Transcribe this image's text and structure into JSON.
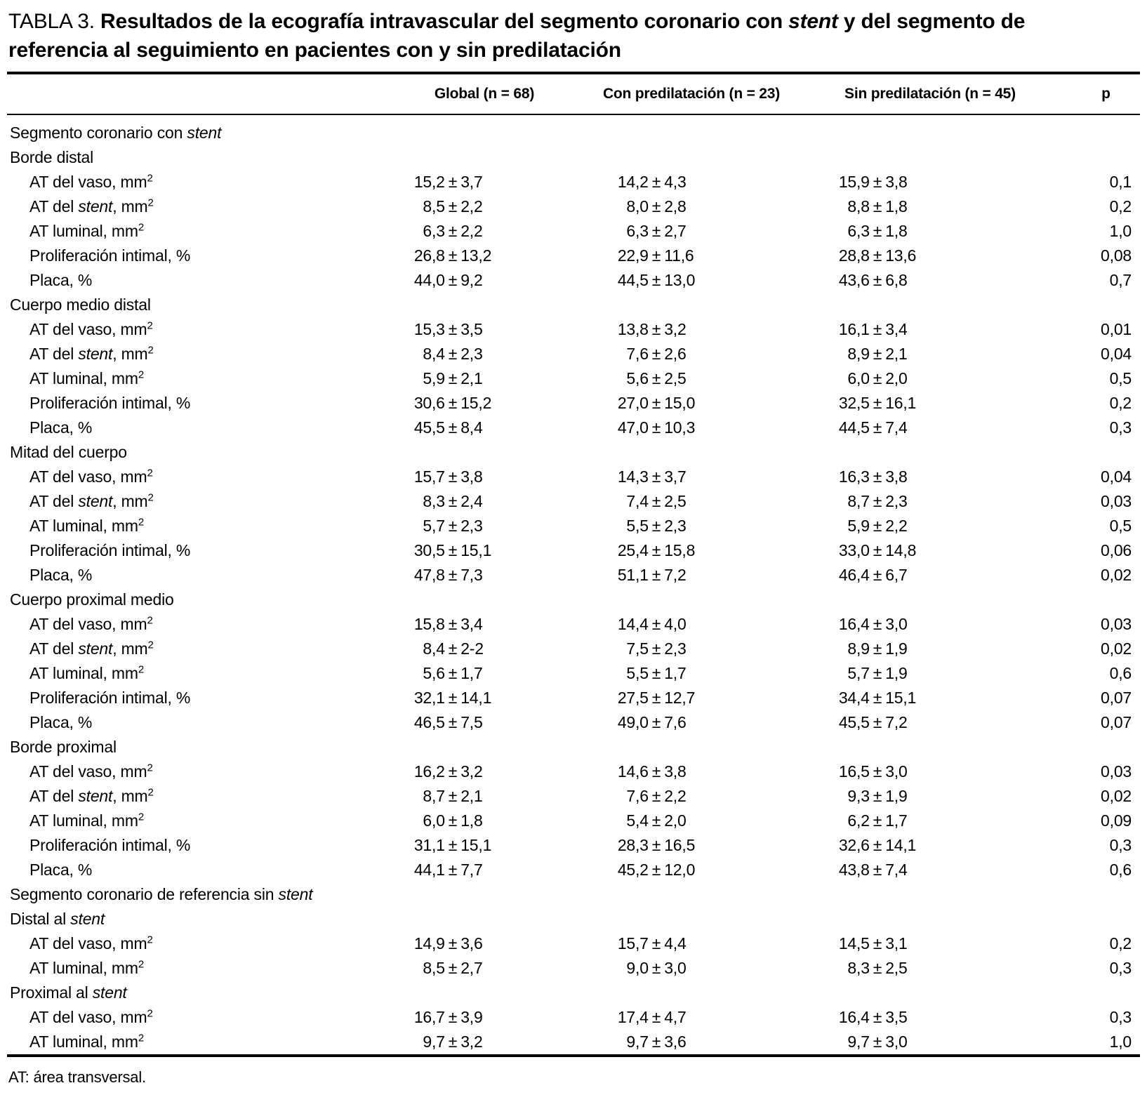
{
  "title": {
    "prefix": "TABLA 3. ",
    "caption": "Resultados de la ecografía intravascular del segmento coronario con *stent* y del segmento de referencia al seguimiento en pacientes con y sin predilatación"
  },
  "table": {
    "columns": [
      "",
      "Global (n = 68)",
      "Con predilatación (n = 23)",
      "Sin predilatación (n = 45)",
      "p"
    ],
    "rows": [
      {
        "type": "group",
        "label": "Segmento coronario con *stent*"
      },
      {
        "type": "group",
        "label": "Borde distal"
      },
      {
        "type": "data",
        "label": "AT del vaso, mm^2",
        "global": "15,2 ± 3,7",
        "con": "14,2 ± 4,3",
        "sin": "15,9 ± 3,8",
        "p": "0,1"
      },
      {
        "type": "data",
        "label": "AT del *stent*, mm^2",
        "global": "8,5 ± 2,2",
        "con": "8,0 ± 2,8",
        "sin": "8,8 ± 1,8",
        "p": "0,2"
      },
      {
        "type": "data",
        "label": "AT luminal, mm^2",
        "global": "6,3 ± 2,2",
        "con": "6,3 ± 2,7",
        "sin": "6,3 ± 1,8",
        "p": "1,0"
      },
      {
        "type": "data",
        "label": "Proliferación intimal, %",
        "global": "26,8 ± 13,2",
        "con": "22,9 ± 11,6",
        "sin": "28,8 ± 13,6",
        "p": "0,08"
      },
      {
        "type": "data",
        "label": "Placa, %",
        "global": "44,0 ± 9,2",
        "con": "44,5 ± 13,0",
        "sin": "43,6 ± 6,8",
        "p": "0,7"
      },
      {
        "type": "group",
        "label": "Cuerpo medio distal"
      },
      {
        "type": "data",
        "label": "AT del vaso, mm^2",
        "global": "15,3 ± 3,5",
        "con": "13,8 ± 3,2",
        "sin": "16,1 ± 3,4",
        "p": "0,01"
      },
      {
        "type": "data",
        "label": "AT del *stent*, mm^2",
        "global": "8,4 ± 2,3",
        "con": "7,6 ± 2,6",
        "sin": "8,9 ± 2,1",
        "p": "0,04"
      },
      {
        "type": "data",
        "label": "AT luminal, mm^2",
        "global": "5,9 ± 2,1",
        "con": "5,6 ± 2,5",
        "sin": "6,0 ± 2,0",
        "p": "0,5"
      },
      {
        "type": "data",
        "label": "Proliferación intimal, %",
        "global": "30,6 ± 15,2",
        "con": "27,0 ± 15,0",
        "sin": "32,5 ± 16,1",
        "p": "0,2"
      },
      {
        "type": "data",
        "label": "Placa, %",
        "global": "45,5 ± 8,4",
        "con": "47,0 ± 10,3",
        "sin": "44,5 ± 7,4",
        "p": "0,3"
      },
      {
        "type": "group",
        "label": "Mitad del cuerpo"
      },
      {
        "type": "data",
        "label": "AT del vaso, mm^2",
        "global": "15,7 ± 3,8",
        "con": "14,3 ± 3,7",
        "sin": "16,3 ± 3,8",
        "p": "0,04"
      },
      {
        "type": "data",
        "label": "AT del *stent*, mm^2",
        "global": "8,3 ± 2,4",
        "con": "7,4 ± 2,5",
        "sin": "8,7 ± 2,3",
        "p": "0,03"
      },
      {
        "type": "data",
        "label": "AT luminal, mm^2",
        "global": "5,7 ± 2,3",
        "con": "5,5 ± 2,3",
        "sin": "5,9 ± 2,2",
        "p": "0,5"
      },
      {
        "type": "data",
        "label": "Proliferación intimal, %",
        "global": "30,5 ± 15,1",
        "con": "25,4 ± 15,8",
        "sin": "33,0 ± 14,8",
        "p": "0,06"
      },
      {
        "type": "data",
        "label": "Placa, %",
        "global": "47,8 ± 7,3",
        "con": "51,1 ± 7,2",
        "sin": "46,4 ± 6,7",
        "p": "0,02"
      },
      {
        "type": "group",
        "label": "Cuerpo proximal medio"
      },
      {
        "type": "data",
        "label": "AT del vaso, mm^2",
        "global": "15,8 ± 3,4",
        "con": "14,4 ± 4,0",
        "sin": "16,4 ± 3,0",
        "p": "0,03"
      },
      {
        "type": "data",
        "label": "AT del *stent*, mm^2",
        "global": "8,4 ± 2-2",
        "con": "7,5 ± 2,3",
        "sin": "8,9 ± 1,9",
        "p": "0,02"
      },
      {
        "type": "data",
        "label": "AT luminal, mm^2",
        "global": "5,6 ± 1,7",
        "con": "5,5 ± 1,7",
        "sin": "5,7 ± 1,9",
        "p": "0,6"
      },
      {
        "type": "data",
        "label": "Proliferación intimal, %",
        "global": "32,1 ± 14,1",
        "con": "27,5 ± 12,7",
        "sin": "34,4 ± 15,1",
        "p": "0,07"
      },
      {
        "type": "data",
        "label": "Placa, %",
        "global": "46,5 ± 7,5",
        "con": "49,0 ± 7,6",
        "sin": "45,5 ± 7,2",
        "p": "0,07"
      },
      {
        "type": "group",
        "label": "Borde proximal"
      },
      {
        "type": "data",
        "label": "AT del vaso, mm^2",
        "global": "16,2 ± 3,2",
        "con": "14,6 ± 3,8",
        "sin": "16,5 ± 3,0",
        "p": "0,03"
      },
      {
        "type": "data",
        "label": "AT del *stent*, mm^2",
        "global": "8,7 ± 2,1",
        "con": "7,6 ± 2,2",
        "sin": "9,3 ± 1,9",
        "p": "0,02"
      },
      {
        "type": "data",
        "label": "AT luminal, mm^2",
        "global": "6,0 ± 1,8",
        "con": "5,4 ± 2,0",
        "sin": "6,2 ± 1,7",
        "p": "0,09"
      },
      {
        "type": "data",
        "label": "Proliferación intimal, %",
        "global": "31,1 ± 15,1",
        "con": "28,3 ± 16,5",
        "sin": "32,6 ± 14,1",
        "p": "0,3"
      },
      {
        "type": "data",
        "label": "Placa, %",
        "global": "44,1 ± 7,7",
        "con": "45,2 ± 12,0",
        "sin": "43,8 ± 7,4",
        "p": "0,6"
      },
      {
        "type": "group",
        "label": "Segmento coronario de referencia sin *stent*"
      },
      {
        "type": "group",
        "label": "Distal al *stent*"
      },
      {
        "type": "data",
        "label": "AT del vaso, mm^2",
        "global": "14,9 ± 3,6",
        "con": "15,7 ± 4,4",
        "sin": "14,5 ± 3,1",
        "p": "0,2"
      },
      {
        "type": "data",
        "label": "AT luminal, mm^2",
        "global": "8,5 ± 2,7",
        "con": "9,0 ± 3,0",
        "sin": "8,3 ± 2,5",
        "p": "0,3"
      },
      {
        "type": "group",
        "label": "Proximal al *stent*"
      },
      {
        "type": "data",
        "label": "AT del vaso, mm^2",
        "global": "16,7 ± 3,9",
        "con": "17,4 ± 4,7",
        "sin": "16,4 ± 3,5",
        "p": "0,3"
      },
      {
        "type": "data",
        "label": "AT luminal, mm^2",
        "global": "9,7 ± 3,2",
        "con": "9,7 ± 3,6",
        "sin": "9,7 ± 3,0",
        "p": "1,0"
      }
    ]
  },
  "footnote": "AT: área transversal."
}
